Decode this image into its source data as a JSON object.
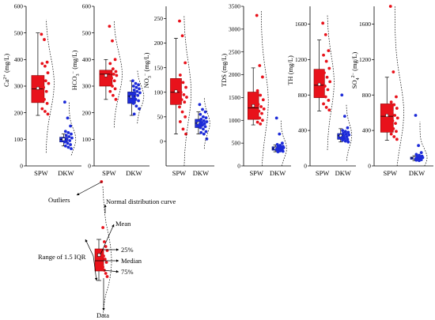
{
  "colors": {
    "spw": "#e8121b",
    "spw_dark": "#8b0000",
    "dkw": "#1d2bd8",
    "dkw_dark": "#0a1470"
  },
  "chart_data": [
    {
      "type": "box",
      "id": "ca",
      "ylabel_main": "Ca",
      "ylabel_sup": "2+",
      "ylabel_unit": " (mg/L)",
      "ylim": [
        0,
        600
      ],
      "yticks": [
        "0",
        "100",
        "200",
        "300",
        "400",
        "500",
        "600"
      ],
      "categories": [
        "SPW",
        "DKW"
      ],
      "boxes": [
        {
          "name": "SPW",
          "whisker_low": 190,
          "q1": 238,
          "median": 290,
          "q3": 340,
          "whisker_high": 500,
          "mean": 292
        },
        {
          "name": "DKW",
          "whisker_low": 75,
          "q1": 90,
          "median": 100,
          "q3": 108,
          "whisker_high": 120,
          "mean": 100
        }
      ],
      "points": [
        [
          495,
          475,
          390,
          385,
          375,
          350,
          330,
          320,
          310,
          295,
          280,
          265,
          250,
          235,
          215,
          205,
          195
        ],
        [
          240,
          180,
          150,
          130,
          125,
          120,
          115,
          110,
          105,
          100,
          95,
          90,
          85,
          80,
          75,
          70,
          65
        ]
      ],
      "curve": [
        {
          "y": [
            50,
            550
          ],
          "peak": 310
        },
        {
          "y": [
            40,
            240
          ],
          "peak": 100
        }
      ]
    },
    {
      "type": "box",
      "id": "hco3",
      "ylabel_main": "HCO",
      "ylabel_sub": "3",
      "ylabel_sup": "−",
      "ylabel_unit": " (mg/L)",
      "ylim": [
        0,
        600
      ],
      "yticks": [
        "0",
        "100",
        "200",
        "300",
        "400",
        "500",
        "600"
      ],
      "categories": [
        "SPW",
        "DKW"
      ],
      "boxes": [
        {
          "name": "SPW",
          "whisker_low": 250,
          "q1": 300,
          "median": 345,
          "q3": 360,
          "whisker_high": 400,
          "mean": 340
        },
        {
          "name": "DKW",
          "whisker_low": 190,
          "q1": 235,
          "median": 262,
          "q3": 278,
          "whisker_high": 320,
          "mean": 260
        }
      ],
      "points": [
        [
          525,
          470,
          400,
          385,
          365,
          355,
          350,
          345,
          340,
          330,
          320,
          310,
          300,
          290,
          280,
          265,
          250
        ],
        [
          320,
          310,
          305,
          300,
          295,
          290,
          285,
          280,
          275,
          270,
          265,
          260,
          250,
          245,
          235,
          225,
          215,
          195
        ]
      ],
      "curve": [
        {
          "y": [
            145,
            545
          ],
          "peak": 345
        },
        {
          "y": [
            160,
            360
          ],
          "peak": 262
        }
      ]
    },
    {
      "type": "box",
      "id": "no3",
      "ylabel_main": "NO",
      "ylabel_sub": "3",
      "ylabel_sup": "−",
      "ylabel_unit": " (mg/L)",
      "ylim": [
        -50,
        275
      ],
      "yticks": [
        "0",
        "50",
        "100",
        "150",
        "200",
        "250"
      ],
      "ytick_values": [
        0,
        50,
        100,
        150,
        200,
        250
      ],
      "categories": [
        "SPW",
        "DKW"
      ],
      "boxes": [
        {
          "name": "SPW",
          "whisker_low": 15,
          "q1": 75,
          "median": 100,
          "q3": 128,
          "whisker_high": 210,
          "mean": 102
        },
        {
          "name": "DKW",
          "whisker_low": 15,
          "q1": 28,
          "median": 37,
          "q3": 45,
          "whisker_high": 60,
          "mean": 37
        }
      ],
      "points": [
        [
          245,
          215,
          160,
          135,
          120,
          110,
          100,
          95,
          90,
          85,
          80,
          70,
          60,
          50,
          40,
          25,
          15
        ],
        [
          75,
          65,
          60,
          55,
          50,
          48,
          45,
          42,
          40,
          38,
          36,
          35,
          33,
          30,
          28,
          25,
          20,
          18,
          15,
          5
        ]
      ],
      "curve": [
        {
          "y": [
            -50,
            255
          ],
          "peak": 100
        },
        {
          "y": [
            -15,
            90
          ],
          "peak": 37
        }
      ]
    },
    {
      "type": "box",
      "id": "tds",
      "ylabel_main": "TDS",
      "ylabel_unit": " (mg/L)",
      "ylim": [
        0,
        3500
      ],
      "yticks": [
        "0",
        "500",
        "1000",
        "1500",
        "2000",
        "2500",
        "3000",
        "3500"
      ],
      "categories": [
        "SPW",
        "DKW"
      ],
      "boxes": [
        {
          "name": "SPW",
          "whisker_low": 900,
          "q1": 1020,
          "median": 1270,
          "q3": 1620,
          "whisker_high": 2150,
          "mean": 1320
        },
        {
          "name": "DKW",
          "whisker_low": 310,
          "q1": 345,
          "median": 380,
          "q3": 420,
          "whisker_high": 460,
          "mean": 385
        }
      ],
      "points": [
        [
          3300,
          2200,
          1950,
          1650,
          1550,
          1450,
          1350,
          1300,
          1250,
          1200,
          1150,
          1100,
          1050,
          1000,
          960,
          920
        ],
        [
          1050,
          700,
          500,
          470,
          450,
          430,
          420,
          410,
          400,
          390,
          380,
          370,
          360,
          350,
          340,
          330,
          320,
          310
        ]
      ],
      "curve": [
        {
          "y": [
            0,
            3400
          ],
          "peak": 1400
        },
        {
          "y": [
            0,
            1000
          ],
          "peak": 380
        }
      ]
    },
    {
      "type": "box",
      "id": "th",
      "ylabel_main": "TH",
      "ylabel_unit": " (mg/L)",
      "ylim": [
        0,
        1800
      ],
      "yticks": [
        "0",
        "400",
        "800",
        "1200",
        "1600"
      ],
      "ytick_values": [
        0,
        400,
        800,
        1200,
        1600
      ],
      "categories": [
        "SPW",
        "DKW"
      ],
      "boxes": [
        {
          "name": "SPW",
          "whisker_low": 620,
          "q1": 770,
          "median": 910,
          "q3": 1090,
          "whisker_high": 1420,
          "mean": 920
        },
        {
          "name": "DKW",
          "whisker_low": 270,
          "q1": 300,
          "median": 340,
          "q3": 365,
          "whisker_high": 420,
          "mean": 340
        }
      ],
      "points": [
        [
          1610,
          1480,
          1300,
          1250,
          1180,
          1100,
          1050,
          1000,
          950,
          900,
          860,
          820,
          780,
          740,
          700,
          660,
          630
        ],
        [
          800,
          560,
          430,
          400,
          390,
          380,
          370,
          360,
          350,
          340,
          330,
          320,
          310,
          300,
          290,
          280,
          270
        ]
      ],
      "curve": [
        {
          "y": [
            180,
            1700
          ],
          "peak": 940
        },
        {
          "y": [
            60,
            700
          ],
          "peak": 345
        }
      ]
    },
    {
      "type": "box",
      "id": "so4",
      "ylabel_main": "SO",
      "ylabel_sub": "4",
      "ylabel_sup": "2−",
      "ylabel_unit": " (mg/L)",
      "ylim": [
        0,
        1800
      ],
      "yticks": [
        "0",
        "400",
        "800",
        "1200",
        "1600"
      ],
      "ytick_values": [
        0,
        400,
        800,
        1200,
        1600
      ],
      "categories": [
        "SPW",
        "DKW"
      ],
      "boxes": [
        {
          "name": "SPW",
          "whisker_low": 290,
          "q1": 380,
          "median": 560,
          "q3": 700,
          "whisker_high": 1000,
          "mean": 570
        },
        {
          "name": "DKW",
          "whisker_low": 60,
          "q1": 75,
          "median": 90,
          "q3": 100,
          "whisker_high": 115,
          "mean": 90
        }
      ],
      "points": [
        [
          1800,
          1060,
          780,
          720,
          690,
          650,
          610,
          570,
          540,
          510,
          480,
          450,
          420,
          390,
          360,
          330,
          300
        ],
        [
          570,
          230,
          150,
          130,
          120,
          110,
          105,
          100,
          95,
          90,
          85,
          80,
          75,
          70,
          65,
          60
        ]
      ],
      "curve": [
        {
          "y": [
            0,
            1800
          ],
          "peak": 600
        },
        {
          "y": [
            0,
            500
          ],
          "peak": 95
        }
      ]
    }
  ],
  "legend": {
    "outliers": "Outliers",
    "normal_curve": "Normal distribution curve",
    "mean": "Mean",
    "p25": "25%",
    "median": "Median",
    "p75": "75%",
    "range": "Range of 1.5 IQR",
    "data": "Data"
  }
}
